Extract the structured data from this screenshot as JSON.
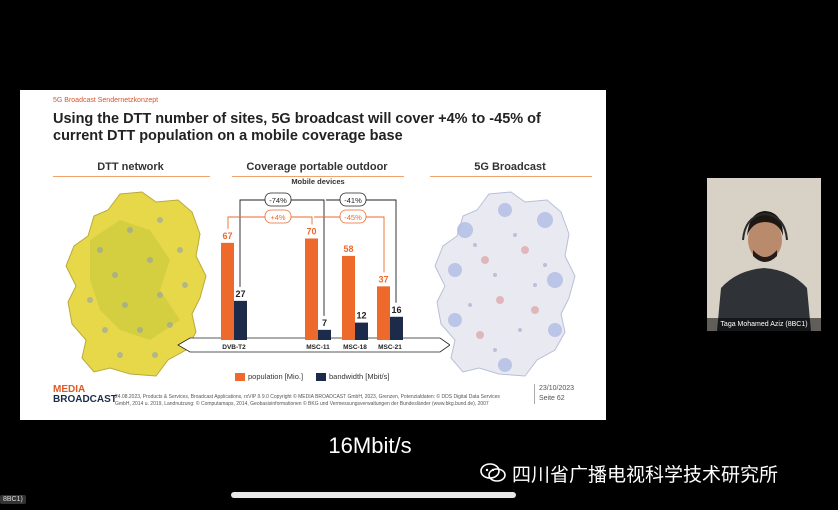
{
  "slide": {
    "breadcrumb": "5G Broadcast Sendernetzkonzept",
    "title": "Using the DTT number of sites, 5G broadcast will cover +4% to -45% of current DTT population on a mobile coverage base",
    "col_left": "DTT network",
    "col_mid": "Coverage portable outdoor",
    "col_mid_sub": "Mobile devices",
    "col_right": "5G Broadcast",
    "ann_bandwidth_1": "-74%",
    "ann_bandwidth_2": "-41%",
    "ann_population_1": "+4%",
    "ann_population_2": "-45%",
    "groups": [
      {
        "label": "DVB-T2",
        "population": 67,
        "bandwidth": 27
      },
      {
        "label": "MSC-11",
        "population": 70,
        "bandwidth": 7
      },
      {
        "label": "MSC-18",
        "population": 58,
        "bandwidth": 12
      },
      {
        "label": "MSC-21",
        "population": 37,
        "bandwidth": 16
      }
    ],
    "legend_population": "population [Mio.]",
    "legend_bandwidth": "bandwidth [Mbit/s]",
    "logo_top": "MEDIA",
    "logo_bottom": "BROADCAST",
    "footer_line1": "24.08.2023,   Products & Services, Broadcast Applications,   rxVIP ß 9.0 Copyright © MEDIA BROADCAST GmbH, 2023, Grenzen, Potenzialdaten: © DDS Digital Data Services",
    "footer_line2": "GmbH, 2014 u. 2019, Landnutzung: © Computamaps, 2014, Geobasisinformationen © BKG und Vermessungsverwaltungen der Bundesländer (www.bkg.bund.de), 2007",
    "date": "23/10/2023",
    "page": "Seite 62"
  },
  "colors": {
    "population": "#ee6a2c",
    "bandwidth": "#1d2b4a",
    "accent": "#d9532b"
  },
  "webcam": {
    "name": "Taga Mohamed Aziz (8BC1)"
  },
  "subtitle": "16Mbit/s",
  "watermark": "四川省广播电视科学技术研究所",
  "corner_tag": "8BC1)"
}
